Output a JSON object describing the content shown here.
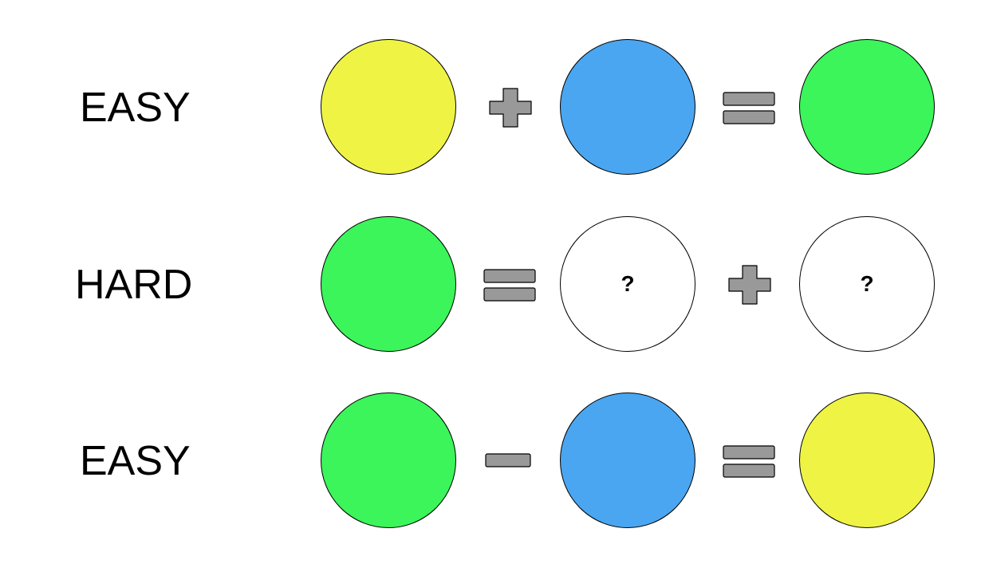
{
  "colors": {
    "yellow": "#eff444",
    "blue": "#4aa6f0",
    "green": "#3bf55a",
    "white": "#ffffff",
    "operator_gray": "#999999"
  },
  "rows": [
    {
      "label": "EASY",
      "items": [
        {
          "kind": "circle",
          "color": "yellow",
          "text": ""
        },
        {
          "kind": "operator",
          "icon": "plus-icon"
        },
        {
          "kind": "circle",
          "color": "blue",
          "text": ""
        },
        {
          "kind": "operator",
          "icon": "equals-icon"
        },
        {
          "kind": "circle",
          "color": "green",
          "text": ""
        }
      ]
    },
    {
      "label": "HARD",
      "items": [
        {
          "kind": "circle",
          "color": "green",
          "text": ""
        },
        {
          "kind": "operator",
          "icon": "equals-icon"
        },
        {
          "kind": "circle",
          "color": "white",
          "text": "?"
        },
        {
          "kind": "operator",
          "icon": "plus-icon"
        },
        {
          "kind": "circle",
          "color": "white",
          "text": "?"
        }
      ]
    },
    {
      "label": "EASY",
      "items": [
        {
          "kind": "circle",
          "color": "green",
          "text": ""
        },
        {
          "kind": "operator",
          "icon": "minus-icon"
        },
        {
          "kind": "circle",
          "color": "blue",
          "text": ""
        },
        {
          "kind": "operator",
          "icon": "equals-icon"
        },
        {
          "kind": "circle",
          "color": "yellow",
          "text": ""
        }
      ]
    }
  ]
}
